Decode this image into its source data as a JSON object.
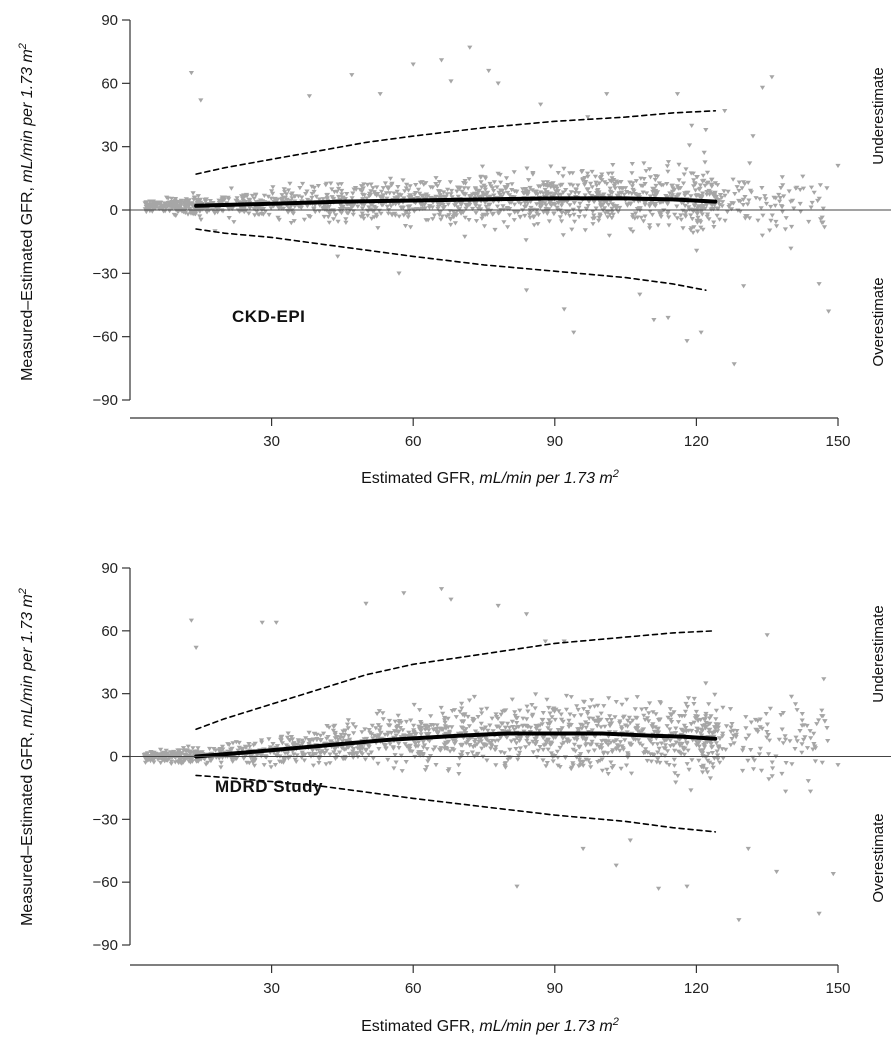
{
  "colors": {
    "points": "#a6a6a6",
    "mean_line": "#000000",
    "interval_line": "#000000",
    "axes": "#333333",
    "background": "#ffffff"
  },
  "chart_data": [
    {
      "type": "scatter",
      "panel_label": "CKD-EPI",
      "xlabel": "Estimated GFR, ",
      "xlabel_units": "mL/min per 1.73 m",
      "ylabel": "Measured–Estimated GFR, ",
      "ylabel_units": "mL/min per 1.73 m",
      "unit_superscript": "2",
      "xlim": [
        0,
        150
      ],
      "ylim": [
        -90,
        90
      ],
      "xticks": [
        30,
        60,
        90,
        120,
        150
      ],
      "yticks": [
        90,
        60,
        30,
        0,
        -30,
        -60,
        -90
      ],
      "grid": false,
      "zero_line": true,
      "side_labels": {
        "upper": "Underestimate",
        "lower": "Overestimate"
      },
      "series": [
        {
          "kind": "points",
          "count": 1600,
          "x": [
            13,
            15,
            18,
            20,
            25,
            30,
            38,
            44,
            47,
            53,
            57,
            60,
            66,
            68,
            72,
            76,
            78,
            84,
            87,
            92,
            94,
            97,
            101,
            108,
            111,
            114,
            116,
            118,
            119,
            121,
            122,
            126,
            128,
            130,
            132,
            134,
            136,
            140,
            142,
            146,
            148,
            150
          ],
          "y": [
            65,
            52,
            -10,
            6,
            3,
            9,
            54,
            -22,
            64,
            55,
            -30,
            69,
            71,
            61,
            77,
            66,
            60,
            -38,
            50,
            -47,
            -58,
            44,
            55,
            -40,
            -52,
            -51,
            55,
            -62,
            40,
            -58,
            38,
            47,
            -73,
            -36,
            35,
            58,
            63,
            4,
            3,
            -35,
            -48,
            21
          ]
        },
        {
          "kind": "mean",
          "x": [
            14,
            30,
            45,
            60,
            75,
            90,
            105,
            115,
            124
          ],
          "y": [
            2,
            3,
            4,
            4.5,
            5,
            5.5,
            5.5,
            5,
            4
          ]
        },
        {
          "kind": "upper_interval",
          "x": [
            14,
            20,
            30,
            40,
            50,
            60,
            75,
            90,
            105,
            115,
            124
          ],
          "y": [
            17,
            20,
            24,
            28,
            32,
            35,
            39,
            42,
            44,
            46,
            47
          ]
        },
        {
          "kind": "lower_interval",
          "x": [
            14,
            20,
            30,
            40,
            50,
            60,
            75,
            90,
            105,
            115,
            122
          ],
          "y": [
            -9,
            -11,
            -13,
            -16,
            -19,
            -22,
            -26,
            -29,
            -32,
            -35,
            -38
          ]
        }
      ]
    },
    {
      "type": "scatter",
      "panel_label": "MDRD Study",
      "xlabel": "Estimated GFR, ",
      "xlabel_units": "mL/min per 1.73 m",
      "ylabel": "Measured–Estimated GFR, ",
      "ylabel_units": "mL/min per 1.73 m",
      "unit_superscript": "2",
      "xlim": [
        0,
        150
      ],
      "ylim": [
        -90,
        90
      ],
      "xticks": [
        30,
        60,
        90,
        120,
        150
      ],
      "yticks": [
        90,
        60,
        30,
        0,
        -30,
        -60,
        -90
      ],
      "grid": false,
      "zero_line": true,
      "side_labels": {
        "upper": "Underestimate",
        "lower": "Overestimate"
      },
      "series": [
        {
          "kind": "points",
          "count": 1600,
          "x": [
            13,
            14,
            28,
            31,
            50,
            58,
            66,
            68,
            78,
            82,
            84,
            88,
            92,
            96,
            103,
            106,
            112,
            118,
            122,
            124,
            129,
            131,
            135,
            137,
            141,
            146,
            147,
            149,
            150
          ],
          "y": [
            65,
            52,
            64,
            64,
            73,
            78,
            80,
            75,
            72,
            -62,
            68,
            55,
            55,
            -44,
            -52,
            -40,
            -63,
            -62,
            35,
            12,
            -78,
            -44,
            58,
            -55,
            25,
            -75,
            37,
            -56,
            -4
          ]
        },
        {
          "kind": "mean",
          "x": [
            14,
            25,
            40,
            55,
            70,
            80,
            90,
            100,
            110,
            117,
            124
          ],
          "y": [
            0,
            2,
            5,
            8,
            10,
            11,
            11,
            11,
            10,
            9.5,
            8.5
          ]
        },
        {
          "kind": "upper_interval",
          "x": [
            14,
            20,
            30,
            40,
            50,
            60,
            75,
            90,
            105,
            115,
            124
          ],
          "y": [
            13,
            18,
            25,
            32,
            39,
            44,
            49,
            54,
            57,
            59,
            60
          ]
        },
        {
          "kind": "lower_interval",
          "x": [
            14,
            20,
            30,
            40,
            50,
            60,
            75,
            90,
            105,
            115,
            124
          ],
          "y": [
            -9,
            -10,
            -12,
            -14,
            -17,
            -20,
            -24,
            -28,
            -31,
            -34,
            -36
          ]
        }
      ]
    }
  ]
}
